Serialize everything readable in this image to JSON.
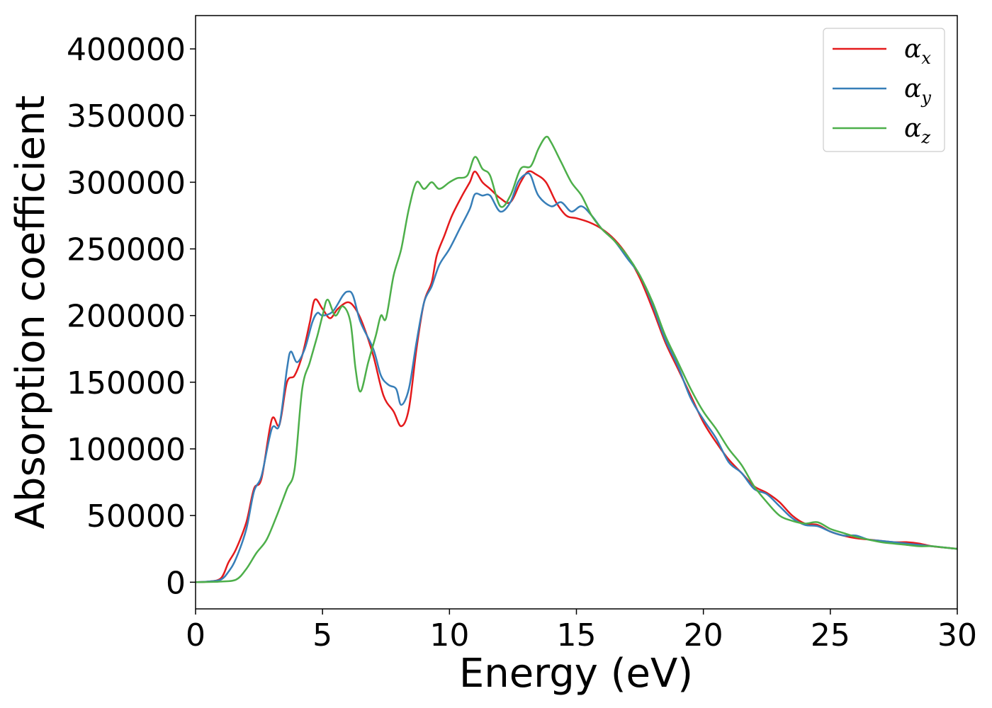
{
  "chart_data": {
    "type": "line",
    "title": "",
    "xlabel": "Energy (eV)",
    "ylabel": "Absorption coefficient",
    "xlim": [
      0,
      30
    ],
    "ylim": [
      -20000,
      425000
    ],
    "x_ticks": [
      0,
      5,
      10,
      15,
      20,
      25,
      30
    ],
    "x_tick_labels": [
      "0",
      "5",
      "10",
      "15",
      "20",
      "25",
      "30"
    ],
    "y_ticks": [
      0,
      50000,
      100000,
      150000,
      200000,
      250000,
      300000,
      350000,
      400000
    ],
    "y_tick_labels": [
      "0",
      "50000",
      "100000",
      "150000",
      "200000",
      "250000",
      "300000",
      "350000",
      "400000"
    ],
    "grid": false,
    "legend_position": "top-right",
    "series": [
      {
        "name": "αx",
        "symbol": "α",
        "subscript": "x",
        "color": "#e41a1c",
        "points": [
          [
            0,
            0
          ],
          [
            0.5,
            500
          ],
          [
            1.0,
            3000
          ],
          [
            1.3,
            15000
          ],
          [
            1.6,
            25000
          ],
          [
            2.0,
            45000
          ],
          [
            2.3,
            70000
          ],
          [
            2.6,
            78000
          ],
          [
            3.0,
            122000
          ],
          [
            3.3,
            118000
          ],
          [
            3.6,
            150000
          ],
          [
            3.9,
            155000
          ],
          [
            4.2,
            170000
          ],
          [
            4.5,
            195000
          ],
          [
            4.7,
            212000
          ],
          [
            5.0,
            205000
          ],
          [
            5.3,
            198000
          ],
          [
            5.6,
            205000
          ],
          [
            6.0,
            210000
          ],
          [
            6.3,
            205000
          ],
          [
            6.6,
            193000
          ],
          [
            7.0,
            170000
          ],
          [
            7.4,
            140000
          ],
          [
            7.8,
            128000
          ],
          [
            8.1,
            117000
          ],
          [
            8.4,
            130000
          ],
          [
            8.7,
            175000
          ],
          [
            9.0,
            210000
          ],
          [
            9.3,
            225000
          ],
          [
            9.5,
            245000
          ],
          [
            9.8,
            260000
          ],
          [
            10.1,
            275000
          ],
          [
            10.5,
            290000
          ],
          [
            10.8,
            300000
          ],
          [
            11.0,
            308000
          ],
          [
            11.3,
            300000
          ],
          [
            11.6,
            295000
          ],
          [
            12.0,
            288000
          ],
          [
            12.4,
            285000
          ],
          [
            12.8,
            300000
          ],
          [
            13.1,
            308000
          ],
          [
            13.4,
            306000
          ],
          [
            13.8,
            300000
          ],
          [
            14.2,
            285000
          ],
          [
            14.6,
            275000
          ],
          [
            15.0,
            273000
          ],
          [
            15.5,
            270000
          ],
          [
            16.0,
            265000
          ],
          [
            16.5,
            257000
          ],
          [
            17.0,
            245000
          ],
          [
            17.5,
            228000
          ],
          [
            18.0,
            205000
          ],
          [
            18.5,
            180000
          ],
          [
            19.0,
            160000
          ],
          [
            19.5,
            140000
          ],
          [
            20.0,
            120000
          ],
          [
            20.5,
            105000
          ],
          [
            21.0,
            92000
          ],
          [
            21.5,
            82000
          ],
          [
            22.0,
            72000
          ],
          [
            22.5,
            67000
          ],
          [
            23.0,
            60000
          ],
          [
            23.5,
            50000
          ],
          [
            24.0,
            44000
          ],
          [
            24.5,
            43000
          ],
          [
            25.0,
            38000
          ],
          [
            25.5,
            35000
          ],
          [
            26.0,
            33000
          ],
          [
            26.5,
            32000
          ],
          [
            27.0,
            31000
          ],
          [
            27.5,
            30000
          ],
          [
            28.0,
            30000
          ],
          [
            28.5,
            29000
          ],
          [
            29.0,
            27000
          ],
          [
            29.5,
            26000
          ],
          [
            30.0,
            25000
          ]
        ]
      },
      {
        "name": "αy",
        "symbol": "α",
        "subscript": "y",
        "color": "#377eb8",
        "points": [
          [
            0,
            0
          ],
          [
            0.5,
            500
          ],
          [
            1.0,
            2000
          ],
          [
            1.3,
            8000
          ],
          [
            1.6,
            18000
          ],
          [
            2.0,
            40000
          ],
          [
            2.3,
            68000
          ],
          [
            2.6,
            80000
          ],
          [
            3.0,
            115000
          ],
          [
            3.3,
            118000
          ],
          [
            3.6,
            160000
          ],
          [
            3.75,
            173000
          ],
          [
            4.0,
            165000
          ],
          [
            4.3,
            175000
          ],
          [
            4.6,
            195000
          ],
          [
            4.8,
            202000
          ],
          [
            5.0,
            200000
          ],
          [
            5.4,
            203000
          ],
          [
            5.8,
            215000
          ],
          [
            6.0,
            218000
          ],
          [
            6.2,
            215000
          ],
          [
            6.5,
            195000
          ],
          [
            7.0,
            175000
          ],
          [
            7.3,
            155000
          ],
          [
            7.6,
            148000
          ],
          [
            7.9,
            145000
          ],
          [
            8.1,
            133000
          ],
          [
            8.4,
            145000
          ],
          [
            8.7,
            180000
          ],
          [
            9.0,
            210000
          ],
          [
            9.3,
            222000
          ],
          [
            9.6,
            238000
          ],
          [
            10.0,
            250000
          ],
          [
            10.4,
            265000
          ],
          [
            10.8,
            280000
          ],
          [
            11.0,
            291000
          ],
          [
            11.3,
            290000
          ],
          [
            11.6,
            290000
          ],
          [
            12.0,
            278000
          ],
          [
            12.4,
            285000
          ],
          [
            12.7,
            300000
          ],
          [
            13.0,
            306000
          ],
          [
            13.2,
            305000
          ],
          [
            13.5,
            290000
          ],
          [
            14.0,
            282000
          ],
          [
            14.4,
            285000
          ],
          [
            14.8,
            278000
          ],
          [
            15.2,
            282000
          ],
          [
            15.6,
            275000
          ],
          [
            16.0,
            265000
          ],
          [
            16.5,
            256000
          ],
          [
            17.0,
            243000
          ],
          [
            17.5,
            230000
          ],
          [
            18.0,
            208000
          ],
          [
            18.5,
            182000
          ],
          [
            19.0,
            162000
          ],
          [
            19.5,
            138000
          ],
          [
            20.0,
            122000
          ],
          [
            20.5,
            108000
          ],
          [
            21.0,
            90000
          ],
          [
            21.5,
            82000
          ],
          [
            22.0,
            70000
          ],
          [
            22.5,
            66000
          ],
          [
            23.0,
            57000
          ],
          [
            23.5,
            48000
          ],
          [
            24.0,
            43000
          ],
          [
            24.5,
            42000
          ],
          [
            25.0,
            38000
          ],
          [
            25.5,
            35000
          ],
          [
            26.0,
            35000
          ],
          [
            26.5,
            32000
          ],
          [
            27.0,
            31000
          ],
          [
            27.5,
            30000
          ],
          [
            28.0,
            29000
          ],
          [
            28.5,
            28000
          ],
          [
            29.0,
            27000
          ],
          [
            29.5,
            26000
          ],
          [
            30.0,
            25000
          ]
        ]
      },
      {
        "name": "αz",
        "symbol": "α",
        "subscript": "z",
        "color": "#4daf4a",
        "points": [
          [
            0,
            0
          ],
          [
            0.5,
            200
          ],
          [
            1.0,
            500
          ],
          [
            1.6,
            2000
          ],
          [
            2.0,
            10000
          ],
          [
            2.4,
            22000
          ],
          [
            2.8,
            32000
          ],
          [
            3.2,
            50000
          ],
          [
            3.6,
            70000
          ],
          [
            3.9,
            85000
          ],
          [
            4.2,
            145000
          ],
          [
            4.5,
            165000
          ],
          [
            4.8,
            185000
          ],
          [
            5.0,
            200000
          ],
          [
            5.2,
            212000
          ],
          [
            5.5,
            200000
          ],
          [
            5.8,
            207000
          ],
          [
            6.1,
            195000
          ],
          [
            6.3,
            160000
          ],
          [
            6.5,
            143000
          ],
          [
            6.8,
            165000
          ],
          [
            7.1,
            185000
          ],
          [
            7.3,
            200000
          ],
          [
            7.5,
            198000
          ],
          [
            7.8,
            230000
          ],
          [
            8.1,
            250000
          ],
          [
            8.4,
            280000
          ],
          [
            8.7,
            300000
          ],
          [
            9.0,
            295000
          ],
          [
            9.3,
            300000
          ],
          [
            9.6,
            295000
          ],
          [
            10.0,
            300000
          ],
          [
            10.3,
            303000
          ],
          [
            10.7,
            305000
          ],
          [
            11.0,
            319000
          ],
          [
            11.3,
            310000
          ],
          [
            11.6,
            305000
          ],
          [
            12.0,
            282000
          ],
          [
            12.4,
            290000
          ],
          [
            12.8,
            310000
          ],
          [
            13.2,
            312000
          ],
          [
            13.5,
            325000
          ],
          [
            13.8,
            334000
          ],
          [
            14.0,
            330000
          ],
          [
            14.4,
            315000
          ],
          [
            14.8,
            300000
          ],
          [
            15.2,
            290000
          ],
          [
            15.6,
            275000
          ],
          [
            16.0,
            265000
          ],
          [
            16.5,
            256000
          ],
          [
            17.0,
            245000
          ],
          [
            17.5,
            230000
          ],
          [
            18.0,
            210000
          ],
          [
            18.5,
            185000
          ],
          [
            19.0,
            165000
          ],
          [
            19.5,
            145000
          ],
          [
            20.0,
            128000
          ],
          [
            20.5,
            115000
          ],
          [
            21.0,
            100000
          ],
          [
            21.5,
            88000
          ],
          [
            22.0,
            72000
          ],
          [
            22.5,
            60000
          ],
          [
            23.0,
            50000
          ],
          [
            23.5,
            46000
          ],
          [
            24.0,
            44000
          ],
          [
            24.5,
            45000
          ],
          [
            25.0,
            40000
          ],
          [
            25.5,
            37000
          ],
          [
            26.0,
            34000
          ],
          [
            26.5,
            32000
          ],
          [
            27.0,
            30000
          ],
          [
            27.5,
            29000
          ],
          [
            28.0,
            28000
          ],
          [
            28.5,
            27000
          ],
          [
            29.0,
            27000
          ],
          [
            29.5,
            26000
          ],
          [
            30.0,
            25000
          ]
        ]
      }
    ]
  }
}
